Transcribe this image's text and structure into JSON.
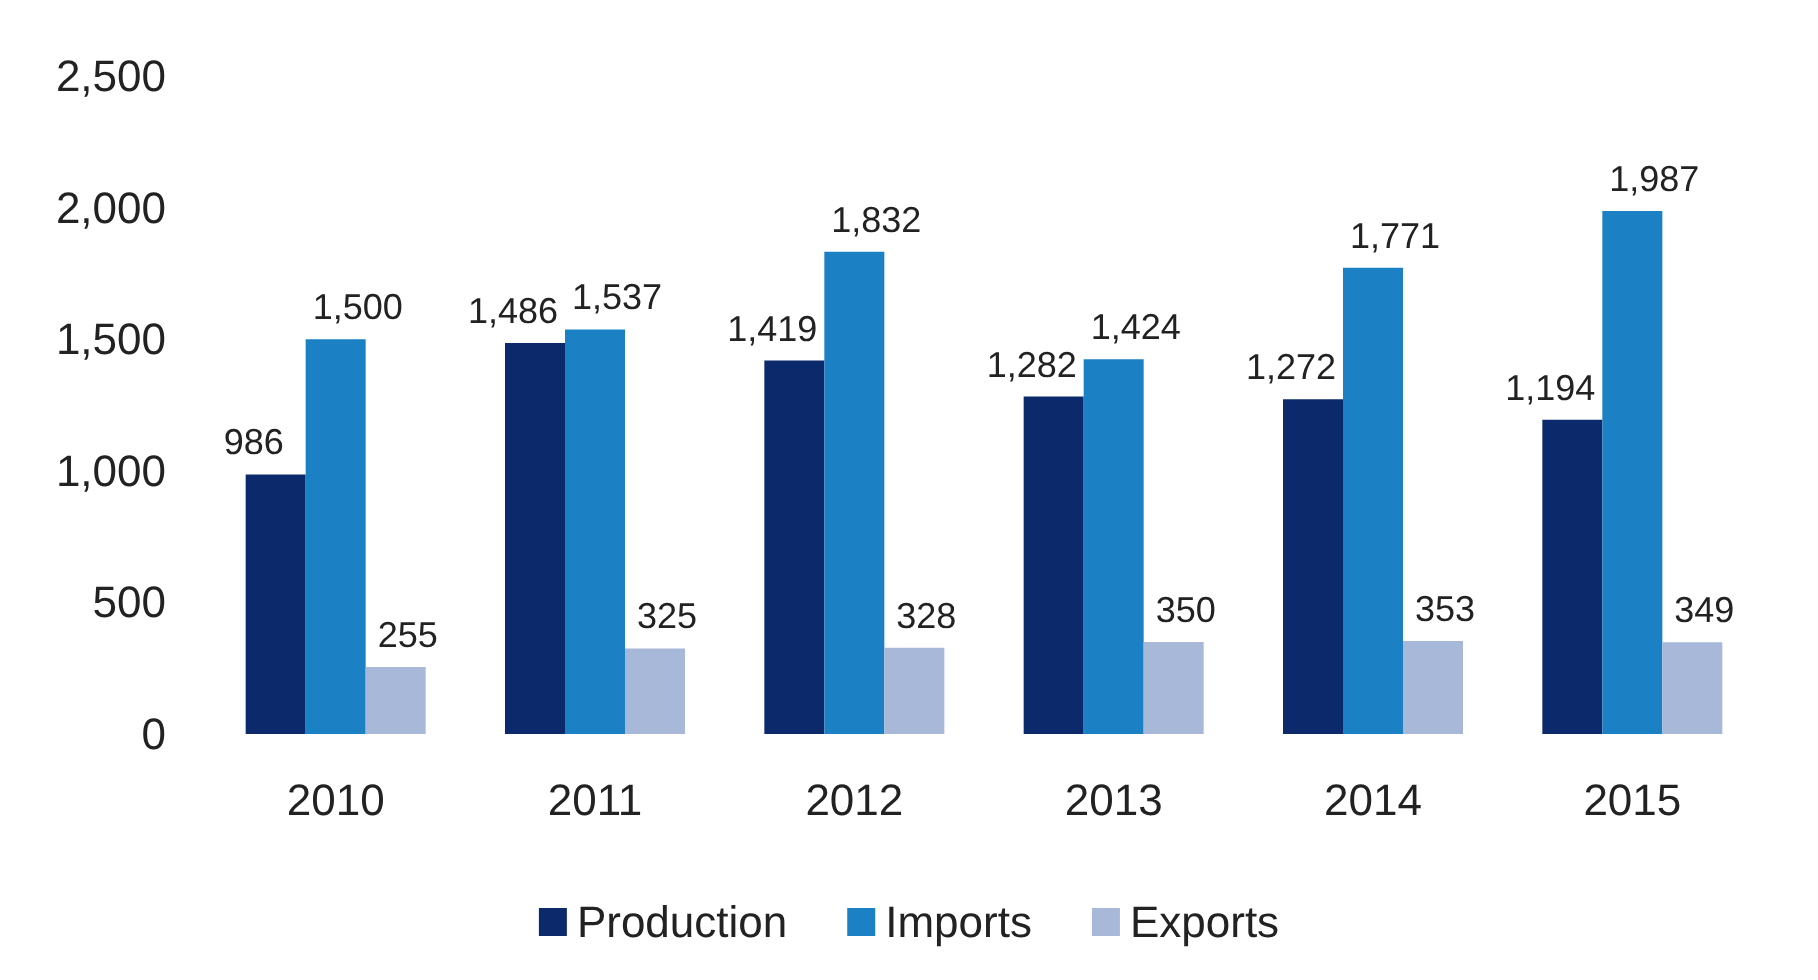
{
  "chart_data": {
    "type": "bar",
    "categories": [
      "2010",
      "2011",
      "2012",
      "2013",
      "2014",
      "2015"
    ],
    "series": [
      {
        "name": "Production",
        "color": "#0c2a6b",
        "values": [
          986,
          1486,
          1419,
          1282,
          1272,
          1194
        ],
        "value_labels": [
          "986",
          "1,486",
          "1,419",
          "1,282",
          "1,272",
          "1,194"
        ]
      },
      {
        "name": "Imports",
        "color": "#1c80c4",
        "values": [
          1500,
          1537,
          1832,
          1424,
          1771,
          1987
        ],
        "value_labels": [
          "1,500",
          "1,537",
          "1,832",
          "1,424",
          "1,771",
          "1,987"
        ]
      },
      {
        "name": "Exports",
        "color": "#a7b8d8",
        "values": [
          255,
          325,
          328,
          350,
          353,
          349
        ],
        "value_labels": [
          "255",
          "325",
          "328",
          "350",
          "353",
          "349"
        ]
      }
    ],
    "ylim": [
      0,
      2500
    ],
    "yticks": [
      0,
      500,
      {
        "value": 1000,
        "label": "1,000"
      },
      {
        "value": 1500,
        "label": "1,500"
      },
      {
        "value": 2000,
        "label": "2,000"
      },
      {
        "value": 2500,
        "label": "2,500"
      }
    ],
    "grid": false,
    "legend": "bottom"
  }
}
